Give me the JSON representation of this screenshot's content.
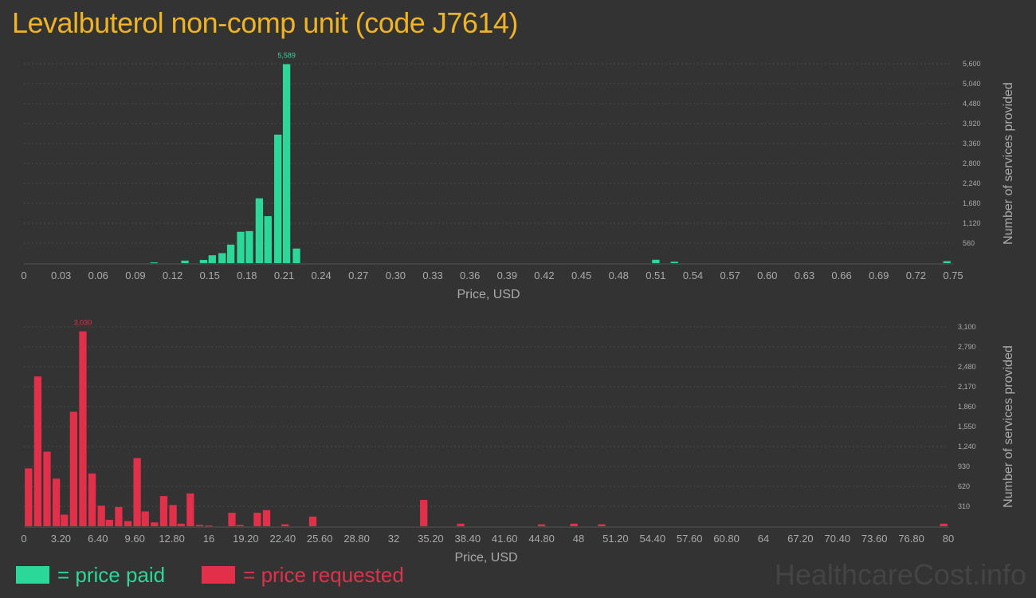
{
  "title": "Levalbuterol non-comp unit (code J7614)",
  "colors": {
    "background": "#333333",
    "title": "#f0b323",
    "paid": "#2bd89a",
    "requested": "#e2304a",
    "axis_text": "#aaaaaa",
    "grid": "#4a4a4a"
  },
  "chart_data": [
    {
      "type": "bar",
      "name": "price-paid",
      "xlabel": "Price, USD",
      "ylabel": "Number of services provided",
      "xlim": [
        0,
        0.75
      ],
      "ylim": [
        0,
        5600
      ],
      "x_ticks": [
        "0",
        "0.03",
        "0.06",
        "0.09",
        "0.12",
        "0.15",
        "0.18",
        "0.21",
        "0.24",
        "0.27",
        "0.30",
        "0.33",
        "0.36",
        "0.39",
        "0.42",
        "0.45",
        "0.48",
        "0.51",
        "0.54",
        "0.57",
        "0.60",
        "0.63",
        "0.66",
        "0.69",
        "0.72",
        "0.75"
      ],
      "y_ticks": [
        "560",
        "1,120",
        "1,680",
        "2,240",
        "2,800",
        "3,360",
        "3,920",
        "4,480",
        "5,040",
        "5,600"
      ],
      "peak_label": "5,589",
      "grid": true,
      "x": [
        0.105,
        0.13,
        0.145,
        0.152,
        0.16,
        0.167,
        0.175,
        0.182,
        0.19,
        0.197,
        0.205,
        0.212,
        0.22,
        0.51,
        0.525,
        0.745
      ],
      "values": [
        20,
        70,
        90,
        220,
        280,
        520,
        880,
        900,
        1820,
        1320,
        3610,
        5589,
        410,
        95,
        40,
        55
      ]
    },
    {
      "type": "bar",
      "name": "price-requested",
      "xlabel": "Price, USD",
      "ylabel": "Number of services provided",
      "xlim": [
        0,
        80
      ],
      "ylim": [
        0,
        3100
      ],
      "x_ticks": [
        "0",
        "3.20",
        "6.40",
        "9.60",
        "12.80",
        "16",
        "19.20",
        "22.40",
        "25.60",
        "28.80",
        "32",
        "35.20",
        "38.40",
        "41.60",
        "44.80",
        "48",
        "51.20",
        "54.40",
        "57.60",
        "60.80",
        "64",
        "67.20",
        "70.40",
        "73.60",
        "76.80",
        "80"
      ],
      "y_ticks": [
        "310",
        "620",
        "930",
        "1,240",
        "1,550",
        "1,860",
        "2,170",
        "2,480",
        "2,790",
        "3,100"
      ],
      "peak_label": "3,030",
      "grid": true,
      "x": [
        0.4,
        1.2,
        2.0,
        2.8,
        3.5,
        4.3,
        5.1,
        5.9,
        6.7,
        7.4,
        8.2,
        9.0,
        9.8,
        10.5,
        11.3,
        12.1,
        12.9,
        13.6,
        14.4,
        15.2,
        16.0,
        18.0,
        18.7,
        20.2,
        21.0,
        22.6,
        25.0,
        34.6,
        37.8,
        44.8,
        47.6,
        50.0,
        79.6
      ],
      "values": [
        900,
        2330,
        1160,
        740,
        180,
        1780,
        3030,
        820,
        320,
        100,
        300,
        80,
        1060,
        230,
        60,
        470,
        330,
        40,
        510,
        20,
        10,
        210,
        20,
        210,
        250,
        30,
        150,
        410,
        40,
        30,
        40,
        30,
        40
      ]
    }
  ],
  "legend": {
    "paid_label": "= price paid",
    "requested_label": "= price requested"
  },
  "watermark": "HealthcareCost.info"
}
